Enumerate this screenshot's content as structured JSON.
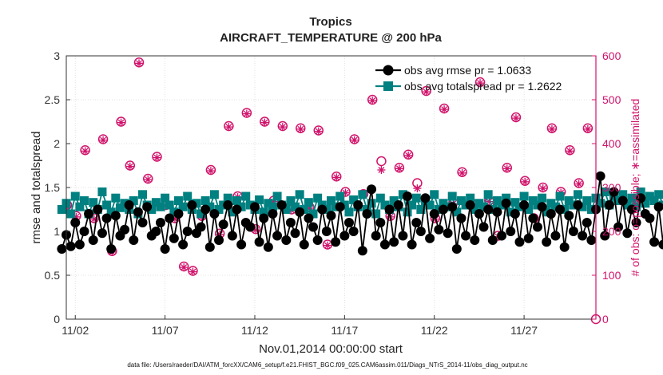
{
  "chart_data": {
    "type": "line",
    "title": "Tropics",
    "subtitle": "AIRCRAFT_TEMPERATURE @ 200 hPa",
    "xlabel": "Nov.01,2014 00:00:00 start",
    "ylabel": "rmse and totalspread",
    "ylabel_right": "# of obs: o=possible; ∗=assimilated",
    "x_tick_labels": [
      "11/02",
      "11/07",
      "11/12",
      "11/17",
      "11/22",
      "11/27"
    ],
    "x_tick_days": [
      2,
      7,
      12,
      17,
      22,
      27
    ],
    "xlim_days": [
      1.5,
      31.0
    ],
    "ylim": [
      0,
      3
    ],
    "y_ticks": [
      0,
      0.5,
      1,
      1.5,
      2,
      2.5,
      3
    ],
    "y_tick_labels": [
      "0",
      "0.5",
      "1",
      "1.5",
      "2",
      "2.5",
      "3"
    ],
    "ylim_right": [
      0,
      600
    ],
    "y_ticks_right": [
      0,
      100,
      200,
      300,
      400,
      500,
      600
    ],
    "y_tick_labels_right": [
      "0",
      "100",
      "200",
      "300",
      "400",
      "500",
      "600"
    ],
    "grid": true,
    "legend_position": "top-right",
    "colors": {
      "rmse": "#000000",
      "spread": "#008080",
      "obs": "#d1136b",
      "axis": "#333333",
      "grid": "#d9d9d9"
    },
    "series": [
      {
        "name": "obs avg rmse",
        "legend_label": "obs avg rmse  pr = 1.0633",
        "marker": "filled-circle",
        "values": [
          0.8,
          0.96,
          0.83,
          1.1,
          0.85,
          1.0,
          1.2,
          0.9,
          1.25,
          0.98,
          1.15,
          0.8,
          1.18,
          0.95,
          1.02,
          1.3,
          0.9,
          1.22,
          1.1,
          1.28,
          0.95,
          1.0,
          1.1,
          0.8,
          1.15,
          0.92,
          1.2,
          0.85,
          1.0,
          1.3,
          0.98,
          1.05,
          1.25,
          0.82,
          1.2,
          0.9,
          1.08,
          1.3,
          0.95,
          1.25,
          0.85,
          1.1,
          1.05,
          1.28,
          0.88,
          1.15,
          0.82,
          1.2,
          0.95,
          1.3,
          0.9,
          1.1,
          0.98,
          1.22,
          0.85,
          1.15,
          1.05,
          0.9,
          1.25,
          1.0,
          1.18,
          0.88,
          1.28,
          0.95,
          1.1,
          1.0,
          1.3,
          0.78,
          1.2,
          1.48,
          0.95,
          1.1,
          0.85,
          1.25,
          0.88,
          1.3,
          0.95,
          1.4,
          0.85,
          1.1,
          1.0,
          1.38,
          0.92,
          1.2,
          1.02,
          1.25,
          0.98,
          1.28,
          0.8,
          1.15,
          0.95,
          1.3,
          0.9,
          1.2,
          1.05,
          1.25,
          0.9,
          1.22,
          0.95,
          1.32,
          1.0,
          1.2,
          0.88,
          1.3,
          0.92,
          1.15,
          1.05,
          1.28,
          0.88,
          1.2,
          0.95,
          1.25,
          0.82,
          1.18,
          1.0,
          1.3,
          0.95,
          1.1,
          0.9,
          1.25,
          1.63,
          0.95,
          1.3,
          1.45,
          1.05,
          1.35,
          0.98,
          1.25,
          1.1,
          1.38,
          1.2,
          1.15,
          0.88,
          1.28,
          0.85,
          1.2,
          1.15,
          1.38
        ]
      },
      {
        "name": "obs avg totalspread",
        "legend_label": "obs avg totalspread  pr = 1.2622",
        "marker": "filled-square",
        "values": [
          1.25,
          1.32,
          1.2,
          1.4,
          1.28,
          1.35,
          1.2,
          1.33,
          1.25,
          1.45,
          1.3,
          1.22,
          1.38,
          1.27,
          1.32,
          1.25,
          1.35,
          1.2,
          1.42,
          1.3,
          1.25,
          1.33,
          1.28,
          1.38,
          1.3,
          1.22,
          1.35,
          1.28,
          1.4,
          1.25,
          1.32,
          1.2,
          1.35,
          1.28,
          1.42,
          1.25,
          1.3,
          1.38,
          1.22,
          1.35,
          1.28,
          1.4,
          1.3,
          1.25,
          1.36,
          1.22,
          1.32,
          1.28,
          1.4,
          1.3,
          1.25,
          1.35,
          1.28,
          1.42,
          1.25,
          1.33,
          1.2,
          1.38,
          1.3,
          1.25,
          1.35,
          1.28,
          1.4,
          1.3,
          1.22,
          1.36,
          1.28,
          1.42,
          1.25,
          1.32,
          1.2,
          1.38,
          1.3,
          1.25,
          1.35,
          1.28,
          1.42,
          1.22,
          1.3,
          1.38,
          1.25,
          1.35,
          1.3,
          1.42,
          1.25,
          1.32,
          1.28,
          1.4,
          1.22,
          1.35,
          1.3,
          1.38,
          1.25,
          1.32,
          1.28,
          1.42,
          1.25,
          1.35,
          1.3,
          1.38,
          1.22,
          1.33,
          1.28,
          1.4,
          1.25,
          1.35,
          1.3,
          1.38,
          1.22,
          1.32,
          1.28,
          1.4,
          1.25,
          1.35,
          1.3,
          1.42,
          1.28,
          1.35,
          1.25,
          1.38,
          1.32,
          1.45,
          1.3,
          1.4,
          1.35,
          1.42,
          1.3,
          1.38,
          1.28,
          1.45,
          1.32,
          1.4,
          1.35,
          1.42,
          1.3,
          1.38,
          1.32,
          1.4
        ]
      },
      {
        "name": "# of obs possible",
        "marker": "open-circle",
        "axis": "right",
        "x_days": [
          1.55,
          2.05,
          2.55,
          3.05,
          3.55,
          4.05,
          4.55,
          5.05,
          5.55,
          6.05,
          6.55,
          7.05,
          7.55,
          8.05,
          8.55,
          9.05,
          9.55,
          10.05,
          10.55,
          11.05,
          11.55,
          12.05,
          12.55,
          13.05,
          13.55,
          14.05,
          14.55,
          15.05,
          15.55,
          16.05,
          16.55,
          17.05,
          17.55,
          18.05,
          18.55,
          19.05,
          19.55,
          20.05,
          20.55,
          21.05,
          21.55,
          22.05,
          22.55,
          23.05,
          23.55,
          24.05,
          24.55,
          25.05,
          25.55,
          26.05,
          26.55,
          27.05,
          27.55,
          28.05,
          28.55,
          29.05,
          29.55,
          30.05,
          30.55
        ],
        "values": [
          260,
          235,
          385,
          230,
          410,
          155,
          450,
          350,
          585,
          320,
          370,
          260,
          230,
          120,
          110,
          235,
          340,
          195,
          440,
          280,
          470,
          205,
          450,
          270,
          440,
          250,
          435,
          255,
          430,
          170,
          325,
          290,
          410,
          285,
          500,
          360,
          235,
          345,
          375,
          310,
          520,
          230,
          480,
          265,
          335,
          265,
          540,
          270,
          190,
          345,
          460,
          315,
          230,
          300,
          435,
          290,
          385,
          310,
          435
        ]
      },
      {
        "name": "# of obs assimilated",
        "marker": "asterisk",
        "axis": "right",
        "x_days": [
          1.55,
          2.05,
          2.55,
          3.05,
          3.55,
          4.05,
          4.55,
          5.05,
          5.55,
          6.05,
          6.55,
          7.05,
          7.55,
          8.05,
          8.55,
          9.05,
          9.55,
          10.05,
          10.55,
          11.05,
          11.55,
          12.05,
          12.55,
          13.05,
          13.55,
          14.05,
          14.55,
          15.05,
          15.55,
          16.05,
          16.55,
          17.05,
          17.55,
          18.05,
          18.55,
          19.05,
          19.55,
          20.05,
          20.55,
          21.05,
          21.55,
          22.05,
          22.55,
          23.05,
          23.55,
          24.05,
          24.55,
          25.05,
          25.55,
          26.05,
          26.55,
          27.05,
          27.55,
          28.05,
          28.55,
          29.05,
          29.55,
          30.05,
          30.55
        ],
        "values": [
          258,
          233,
          383,
          228,
          408,
          153,
          448,
          348,
          583,
          318,
          368,
          258,
          228,
          118,
          108,
          233,
          338,
          193,
          438,
          278,
          468,
          203,
          448,
          268,
          438,
          248,
          433,
          253,
          428,
          168,
          323,
          288,
          408,
          283,
          498,
          340,
          233,
          343,
          373,
          298,
          518,
          228,
          478,
          263,
          333,
          263,
          538,
          268,
          188,
          343,
          458,
          313,
          228,
          298,
          433,
          288,
          383,
          308,
          433
        ]
      }
    ],
    "footnote": "data file: /Users/raeder/DAI/ATM_forcXX/CAM6_setup/f.e21.FHIST_BGC.f09_025.CAM6assim.011/Diags_NTrS_2014-11/obs_diag_output.nc"
  }
}
